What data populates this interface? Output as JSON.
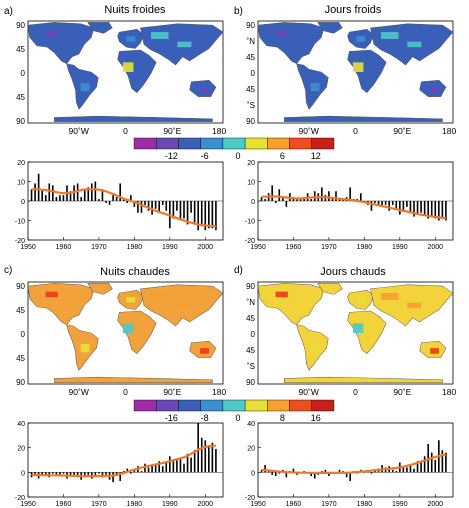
{
  "maps": [
    {
      "id": "a",
      "panel_label": "a)",
      "title": "Nuits froides",
      "lat_labels": [
        "90",
        "45",
        "0",
        "45",
        "90"
      ],
      "lon_labels": [
        "90˚W",
        "0",
        "90˚E",
        "180"
      ],
      "palette": "cool",
      "land_fill": "#3a5fb8"
    },
    {
      "id": "b",
      "panel_label": "b)",
      "title": "Jours froids",
      "lat_labels": [
        "90",
        "˚N",
        "45",
        "0",
        "45",
        "˚S",
        "90"
      ],
      "lon_labels": [
        "90˚W",
        "0",
        "90˚E",
        "180"
      ],
      "palette": "cool",
      "land_fill": "#3a5fb8"
    },
    {
      "id": "c",
      "panel_label": "c)",
      "title": "Nuits chaudes",
      "lat_labels": [
        "90",
        "45",
        "0",
        "45",
        "90"
      ],
      "lon_labels": [
        "90˚W",
        "0",
        "90˚E",
        "180"
      ],
      "palette": "warm",
      "land_fill": "#f2a23a"
    },
    {
      "id": "d",
      "panel_label": "d)",
      "title": "Jours chauds",
      "lat_labels": [
        "90",
        "˚N",
        "45",
        "0",
        "45",
        "˚S",
        "90"
      ],
      "lon_labels": [
        "90˚W",
        "0",
        "90˚E",
        "180"
      ],
      "palette": "warm",
      "land_fill": "#f2d33a"
    }
  ],
  "colorbars": [
    {
      "labels": [
        "-12",
        "-6",
        "0",
        "6",
        "12"
      ],
      "colors": [
        "#a02aa8",
        "#6a48b8",
        "#3a5fb8",
        "#3b8fd0",
        "#4fc8c8",
        "#e8e03a",
        "#f5a030",
        "#e85020",
        "#c8201a"
      ]
    },
    {
      "labels": [
        "-16",
        "-8",
        "0",
        "8",
        "16"
      ],
      "colors": [
        "#a02aa8",
        "#6a48b8",
        "#3a5fb8",
        "#3b8fd0",
        "#4fc8c8",
        "#e8e03a",
        "#f5a030",
        "#e85020",
        "#c8201a"
      ]
    }
  ],
  "colors": {
    "bars": "#000000",
    "trend": "#f07828",
    "sea": "#ffffff",
    "coast": "#555555"
  },
  "chart_data": [
    {
      "type": "bar",
      "panel": "a",
      "x": [
        1951,
        1952,
        1953,
        1954,
        1955,
        1956,
        1957,
        1958,
        1959,
        1960,
        1961,
        1962,
        1963,
        1964,
        1965,
        1966,
        1967,
        1968,
        1969,
        1970,
        1971,
        1972,
        1973,
        1974,
        1975,
        1976,
        1977,
        1978,
        1979,
        1980,
        1981,
        1982,
        1983,
        1984,
        1985,
        1986,
        1987,
        1988,
        1989,
        1990,
        1991,
        1992,
        1993,
        1994,
        1995,
        1996,
        1997,
        1998,
        1999,
        2000,
        2001,
        2002,
        2003
      ],
      "values": [
        6,
        9,
        14,
        6,
        3,
        9,
        8,
        2,
        3,
        3,
        8,
        5,
        8,
        9,
        2,
        6,
        7,
        9,
        10,
        1,
        6,
        -1,
        -2,
        3,
        2,
        9,
        1,
        -1,
        3,
        -3,
        -6,
        -6,
        -2,
        -5,
        -7,
        -4,
        -6,
        -2,
        -5,
        -14,
        -9,
        -5,
        -10,
        -9,
        -12,
        -6,
        -11,
        -15,
        -13,
        -15,
        -14,
        -14,
        -15
      ],
      "trend": [
        6,
        6,
        6,
        5.8,
        5.6,
        5.3,
        5,
        4.5,
        4.2,
        4,
        4,
        4.2,
        4.6,
        5.2,
        5.6,
        5.9,
        6,
        6,
        6,
        5.8,
        5.4,
        5,
        4.3,
        3.6,
        2.8,
        2,
        1.2,
        0.6,
        0,
        -0.6,
        -1.2,
        -2,
        -2.8,
        -3.5,
        -4.2,
        -5,
        -5.6,
        -6.2,
        -6.8,
        -7.5,
        -8.1,
        -8.8,
        -9.4,
        -10,
        -10.6,
        -11.1,
        -11.6,
        -12,
        -12.3,
        -12.5,
        -12.7,
        -12.8,
        -12.9
      ],
      "xticks": [
        1950,
        1960,
        1970,
        1980,
        1990,
        2000
      ],
      "yticks": [
        -20,
        -10,
        0,
        10,
        20
      ],
      "xlim": [
        1950,
        2005
      ],
      "ylim": [
        -20,
        20
      ]
    },
    {
      "type": "bar",
      "panel": "b",
      "x": [
        1951,
        1952,
        1953,
        1954,
        1955,
        1956,
        1957,
        1958,
        1959,
        1960,
        1961,
        1962,
        1963,
        1964,
        1965,
        1966,
        1967,
        1968,
        1969,
        1970,
        1971,
        1972,
        1973,
        1974,
        1975,
        1976,
        1977,
        1978,
        1979,
        1980,
        1981,
        1982,
        1983,
        1984,
        1985,
        1986,
        1987,
        1988,
        1989,
        1990,
        1991,
        1992,
        1993,
        1994,
        1995,
        1996,
        1997,
        1998,
        1999,
        2000,
        2001,
        2002,
        2003
      ],
      "values": [
        2,
        1,
        4,
        8,
        -1,
        6,
        2,
        -3,
        4,
        2,
        1,
        1,
        2,
        4,
        1,
        5,
        4,
        7,
        3,
        5,
        2,
        5,
        1,
        1,
        2,
        7,
        1,
        1,
        4,
        -1,
        -2,
        -5,
        -1,
        -2,
        -3,
        -2,
        -5,
        -2,
        -4,
        -7,
        -5,
        -3,
        -6,
        -8,
        -7,
        -6,
        -7,
        -9,
        -8,
        -9,
        -10,
        -9,
        -10
      ],
      "trend": [
        2.2,
        2.2,
        2.3,
        2.3,
        2.3,
        2.2,
        2,
        1.8,
        1.6,
        1.4,
        1.3,
        1.3,
        1.4,
        1.6,
        1.8,
        1.9,
        2,
        2,
        1.9,
        1.8,
        1.6,
        1.4,
        1.2,
        1,
        0.8,
        0.6,
        0.3,
        0,
        -0.3,
        -0.6,
        -1,
        -1.4,
        -1.8,
        -2.2,
        -2.6,
        -3,
        -3.4,
        -3.8,
        -4.2,
        -4.6,
        -5,
        -5.4,
        -5.8,
        -6.2,
        -6.6,
        -7,
        -7.3,
        -7.6,
        -7.9,
        -8.2,
        -8.4,
        -8.6,
        -8.8
      ],
      "xticks": [
        1950,
        1960,
        1970,
        1980,
        1990,
        2000
      ],
      "yticks": [
        -20,
        -10,
        0,
        10,
        20
      ],
      "xlim": [
        1950,
        2005
      ],
      "ylim": [
        -20,
        20
      ]
    },
    {
      "type": "bar",
      "panel": "c",
      "x": [
        1951,
        1952,
        1953,
        1954,
        1955,
        1956,
        1957,
        1958,
        1959,
        1960,
        1961,
        1962,
        1963,
        1964,
        1965,
        1966,
        1967,
        1968,
        1969,
        1970,
        1971,
        1972,
        1973,
        1974,
        1975,
        1976,
        1977,
        1978,
        1979,
        1980,
        1981,
        1982,
        1983,
        1984,
        1985,
        1986,
        1987,
        1988,
        1989,
        1990,
        1991,
        1992,
        1993,
        1994,
        1995,
        1996,
        1997,
        1998,
        1999,
        2000,
        2001,
        2002,
        2003
      ],
      "values": [
        -4,
        -2,
        -5,
        -3,
        -2,
        -4,
        -1,
        -3,
        -2,
        -1,
        -5,
        -3,
        -2,
        -4,
        -6,
        -4,
        -2,
        -5,
        -3,
        -1,
        -4,
        -2,
        -6,
        -8,
        -2,
        -7,
        1,
        3,
        -1,
        3,
        5,
        1,
        7,
        4,
        6,
        7,
        9,
        5,
        8,
        13,
        9,
        10,
        12,
        7,
        15,
        12,
        18,
        40,
        28,
        26,
        22,
        24,
        19
      ],
      "trend": [
        -2,
        -2.1,
        -2.2,
        -2.3,
        -2.4,
        -2.4,
        -2.4,
        -2.4,
        -2.5,
        -2.6,
        -2.7,
        -2.8,
        -2.9,
        -3,
        -3,
        -3,
        -3,
        -3,
        -3,
        -3,
        -3,
        -3,
        -2.9,
        -2.6,
        -2.1,
        -1.4,
        -0.6,
        0.4,
        1.3,
        2.2,
        3,
        3.8,
        4.5,
        5.2,
        5.8,
        6.4,
        7,
        7.6,
        8.3,
        9,
        9.8,
        10.6,
        11.4,
        12.3,
        13.5,
        15,
        16.6,
        18.2,
        19.6,
        20.6,
        21.2,
        21.5,
        21.6
      ],
      "xticks": [
        1950,
        1960,
        1970,
        1980,
        1990,
        2000
      ],
      "yticks": [
        -20,
        0,
        20,
        40
      ],
      "xlim": [
        1950,
        2005
      ],
      "ylim": [
        -20,
        40
      ]
    },
    {
      "type": "bar",
      "panel": "d",
      "x": [
        1951,
        1952,
        1953,
        1954,
        1955,
        1956,
        1957,
        1958,
        1959,
        1960,
        1961,
        1962,
        1963,
        1964,
        1965,
        1966,
        1967,
        1968,
        1969,
        1970,
        1971,
        1972,
        1973,
        1974,
        1975,
        1976,
        1977,
        1978,
        1979,
        1980,
        1981,
        1982,
        1983,
        1984,
        1985,
        1986,
        1987,
        1988,
        1989,
        1990,
        1991,
        1992,
        1993,
        1994,
        1995,
        1996,
        1997,
        1998,
        1999,
        2000,
        2001,
        2002,
        2003
      ],
      "values": [
        2,
        6,
        1,
        -2,
        -3,
        -1,
        2,
        -4,
        1,
        3,
        -2,
        0,
        1,
        -1,
        -3,
        -5,
        -2,
        1,
        2,
        -3,
        -1,
        0,
        2,
        1,
        -4,
        -7,
        1,
        -1,
        2,
        0,
        1,
        -1,
        2,
        3,
        6,
        4,
        5,
        2,
        1,
        8,
        5,
        4,
        6,
        3,
        9,
        8,
        13,
        23,
        16,
        10,
        26,
        18,
        16
      ],
      "trend": [
        2,
        1.8,
        1.5,
        1.2,
        0.9,
        0.6,
        0.4,
        0.2,
        0,
        -0.1,
        -0.2,
        -0.3,
        -0.3,
        -0.4,
        -0.4,
        -0.5,
        -0.5,
        -0.5,
        -0.5,
        -0.5,
        -0.5,
        -0.5,
        -0.5,
        -0.4,
        -0.3,
        -0.2,
        0,
        0.2,
        0.5,
        0.8,
        1.1,
        1.4,
        1.7,
        2,
        2.3,
        2.6,
        2.9,
        3.2,
        3.5,
        4,
        4.6,
        5.3,
        6,
        6.8,
        7.7,
        8.6,
        9.6,
        10.6,
        11.5,
        12.4,
        13.2,
        13.9,
        14.4
      ],
      "xticks": [
        1950,
        1960,
        1970,
        1980,
        1990,
        2000
      ],
      "yticks": [
        -20,
        0,
        20,
        40
      ],
      "xlim": [
        1950,
        2005
      ],
      "ylim": [
        -20,
        40
      ]
    }
  ]
}
